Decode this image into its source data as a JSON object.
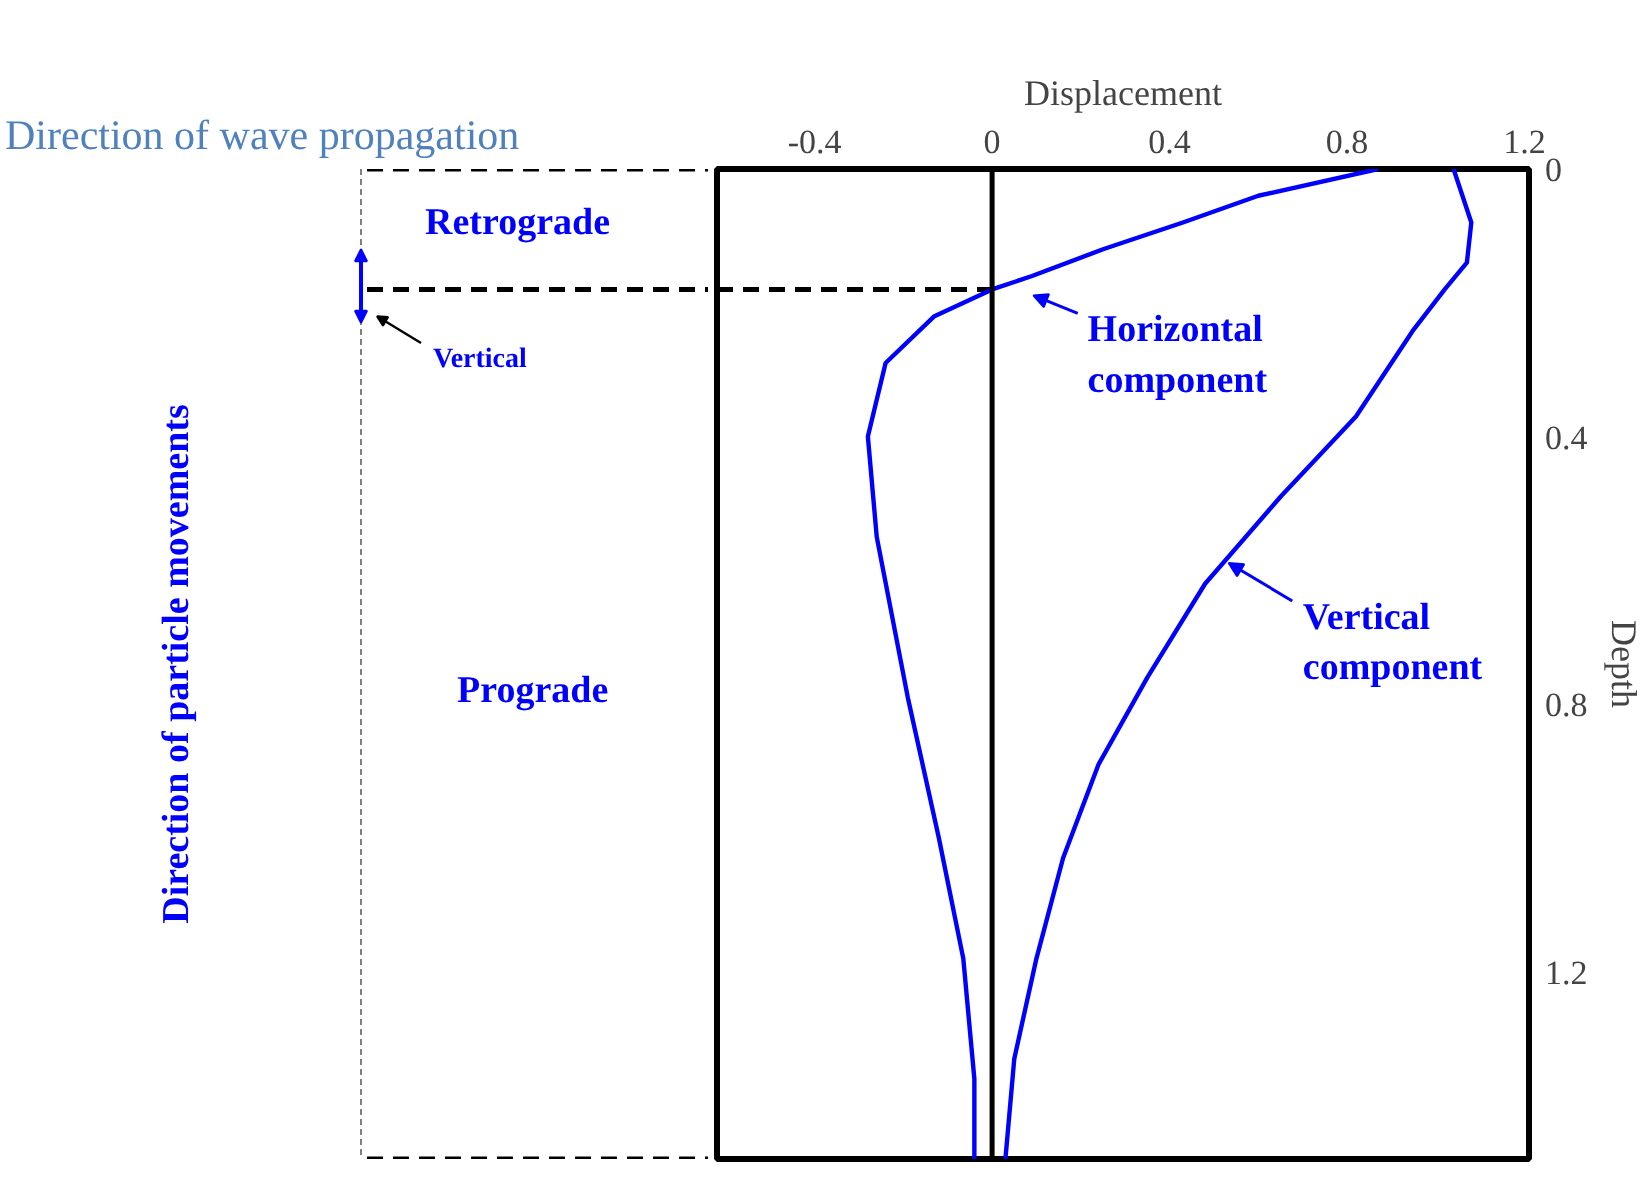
{
  "chart_data": {
    "type": "line",
    "title": "Direction of wave propagation",
    "xlabel": "Displacement",
    "ylabel": "Depth",
    "xlim": [
      -0.62,
      1.21
    ],
    "ylim": [
      1.48,
      0
    ],
    "xticks": [
      -0.4,
      0,
      0.4,
      0.8,
      1.2
    ],
    "yticks": [
      0,
      0.4,
      0.8,
      1.2
    ],
    "grid": false,
    "marker": "none",
    "line_style": "solid",
    "series": [
      {
        "color": "#0000ff",
        "x": [
          0.87,
          0.6,
          0.43,
          0.25,
          0.09,
          0.0,
          -0.13,
          -0.24,
          -0.28,
          -0.26,
          -0.19,
          -0.12,
          -0.065,
          -0.04,
          -0.04
        ],
        "values": [
          0,
          0.04,
          0.08,
          0.12,
          0.16,
          0.18,
          0.22,
          0.29,
          0.4,
          0.55,
          0.79,
          1.0,
          1.18,
          1.36,
          1.48
        ]
      },
      {
        "color": "#0000ff",
        "x": [
          1.04,
          1.08,
          1.07,
          1.02,
          0.95,
          0.82,
          0.65,
          0.48,
          0.35,
          0.24,
          0.16,
          0.1,
          0.05,
          0.03
        ],
        "values": [
          0,
          0.08,
          0.14,
          0.18,
          0.24,
          0.37,
          0.49,
          0.62,
          0.76,
          0.89,
          1.03,
          1.18,
          1.33,
          1.48
        ]
      }
    ],
    "ref_lines": [
      {
        "axis": "x",
        "value": 0,
        "color": "#000000",
        "line_style": "solid"
      },
      {
        "axis": "y",
        "value": 0.18,
        "color": "#000000",
        "line_style": "dashed"
      }
    ],
    "annotations": [
      "Retrograde",
      "Vertical",
      "Prograde",
      "Direction of particle movements",
      {
        "text": "Horizontal\ncomponent",
        "x": 0.08,
        "y": 0.18
      },
      {
        "text": "Vertical\ncomponent",
        "x": 0.52,
        "y": 0.58
      }
    ]
  }
}
